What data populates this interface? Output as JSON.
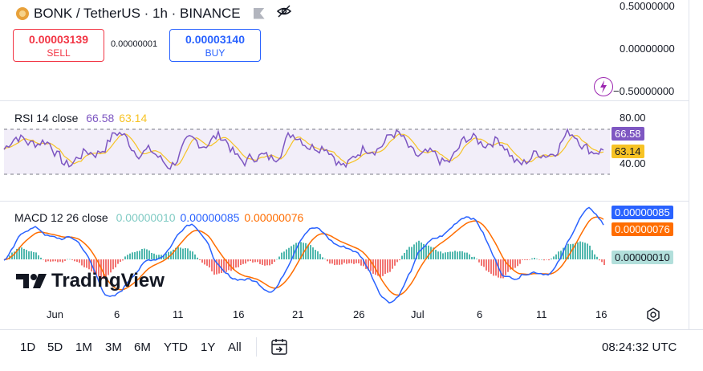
{
  "header": {
    "symbol_title": "BONK / TetherUS · 1h · BINANCE"
  },
  "trade": {
    "sell_price": "0.00003139",
    "sell_label": "SELL",
    "spread": "0.00000001",
    "buy_price": "0.00003140",
    "buy_label": "BUY"
  },
  "price_axis": [
    "0.50000000",
    "0.00000000",
    "−0.50000000"
  ],
  "rsi": {
    "title": "RSI 14 close",
    "rsi_value": "66.58",
    "ma_value": "63.14",
    "axis": [
      "80.00",
      "40.00"
    ],
    "badge_rsi": "66.58",
    "badge_ma": "63.14"
  },
  "macd": {
    "title": "MACD 12 26 close",
    "hist_value": "0.00000010",
    "macd_value": "0.00000085",
    "signal_value": "0.00000076",
    "badge_macd": "0.00000085",
    "badge_signal": "0.00000076",
    "badge_hist": "0.00000010"
  },
  "time_axis": [
    "Jun",
    "6",
    "11",
    "16",
    "21",
    "26",
    "Jul",
    "6",
    "11",
    "16"
  ],
  "logo": "TradingView",
  "timeframes": [
    "1D",
    "5D",
    "1M",
    "3M",
    "6M",
    "YTD",
    "1Y",
    "All"
  ],
  "clock": "08:24:32 UTC",
  "colors": {
    "rsi": "#7e57c2",
    "rsi_ma": "#f7c325",
    "macd": "#2962ff",
    "signal": "#ff6d00",
    "hist_pos": "#26a69a",
    "hist_neg": "#ef5350",
    "sell": "#f23645",
    "buy": "#2962ff"
  }
}
